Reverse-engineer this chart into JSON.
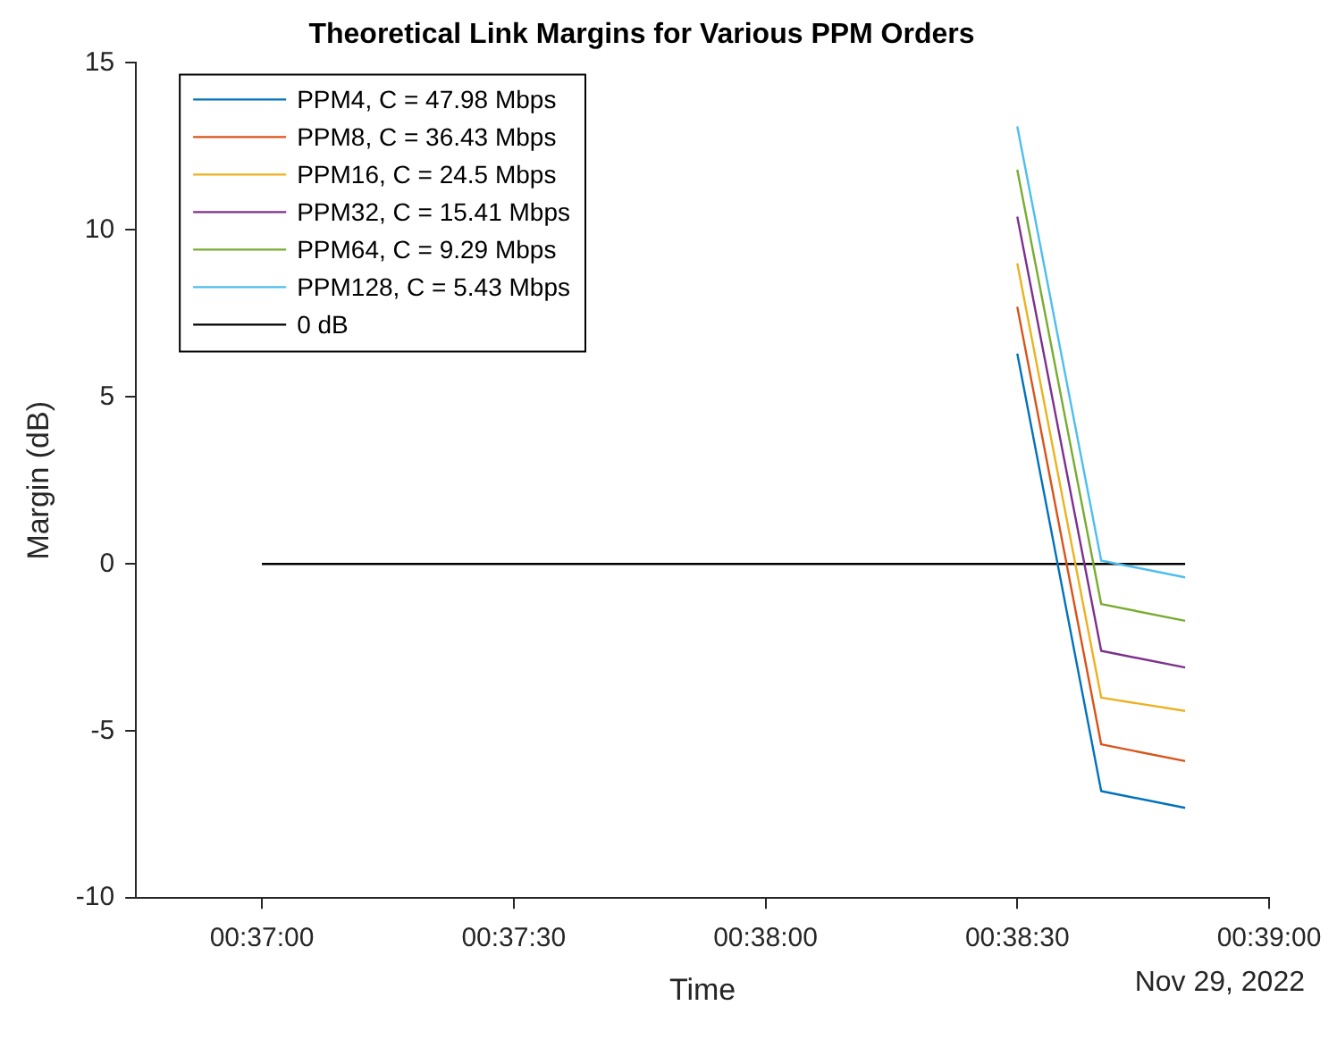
{
  "chart_data": {
    "type": "line",
    "title": "Theoretical Link Margins for Various PPM Orders",
    "xlabel": "Time",
    "ylabel": "Margin (dB)",
    "annotations": [
      "Nov 29, 2022"
    ],
    "x": [
      "2022-11-29T00:38:30",
      "2022-11-29T00:38:40",
      "2022-11-29T00:38:50"
    ],
    "series": [
      {
        "name": "PPM4, C = 47.98 Mbps",
        "color": "#0072bd",
        "values": [
          6.3,
          -6.8,
          -7.3
        ]
      },
      {
        "name": "PPM8, C = 36.43 Mbps",
        "color": "#d95319",
        "values": [
          7.7,
          -5.4,
          -5.9
        ]
      },
      {
        "name": "PPM16, C = 24.5 Mbps",
        "color": "#edb120",
        "values": [
          9.0,
          -4.0,
          -4.4
        ]
      },
      {
        "name": "PPM32, C = 15.41 Mbps",
        "color": "#7e2f8e",
        "values": [
          10.4,
          -2.6,
          -3.1
        ]
      },
      {
        "name": "PPM64, C = 9.29 Mbps",
        "color": "#77ac30",
        "values": [
          11.8,
          -1.2,
          -1.7
        ]
      },
      {
        "name": "PPM128, C = 5.43 Mbps",
        "color": "#4dbeee",
        "values": [
          13.1,
          0.1,
          -0.4
        ]
      },
      {
        "name": "0 dB",
        "color": "#000000",
        "x": [
          "2022-11-29T00:37:00",
          "2022-11-29T00:38:50"
        ],
        "values": [
          0,
          0
        ]
      }
    ],
    "xlim": [
      "2022-11-29T00:36:45",
      "2022-11-29T00:39:00"
    ],
    "xticks": [
      {
        "value": "2022-11-29T00:37:00",
        "label": "00:37:00"
      },
      {
        "value": "2022-11-29T00:37:30",
        "label": "00:37:30"
      },
      {
        "value": "2022-11-29T00:38:00",
        "label": "00:38:00"
      },
      {
        "value": "2022-11-29T00:38:30",
        "label": "00:38:30"
      },
      {
        "value": "2022-11-29T00:39:00",
        "label": "00:39:00"
      }
    ],
    "ylim": [
      -10,
      15
    ],
    "yticks": [
      -10,
      -5,
      0,
      5,
      10,
      15
    ],
    "grid": false,
    "legend": "top left",
    "marker": "none",
    "line_style": "solid"
  }
}
